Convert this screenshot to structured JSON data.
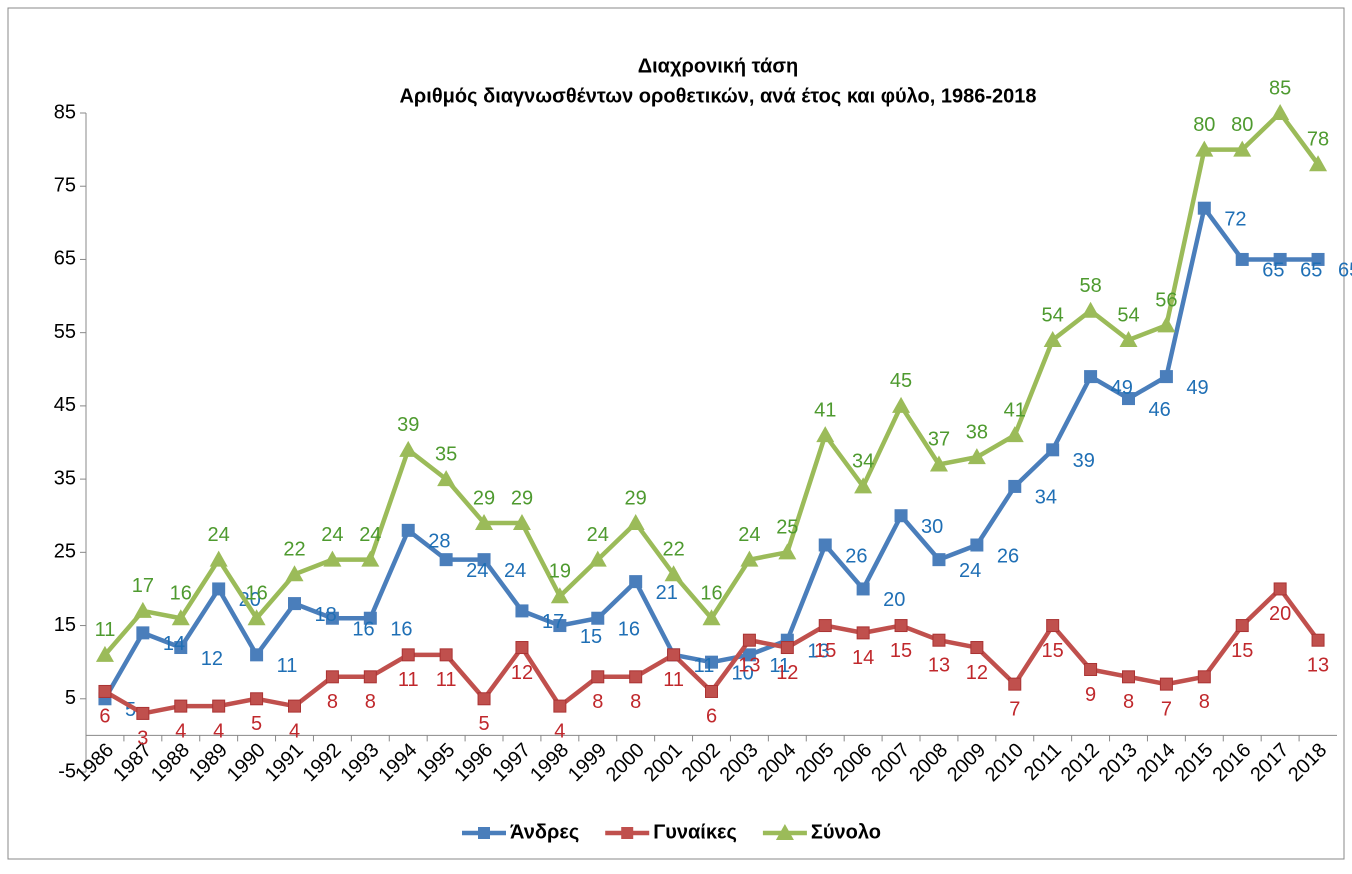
{
  "chart_data": {
    "type": "line",
    "title": "Διαχρονική τάση",
    "subtitle": "Αριθμός διαγνωσθέντων οροθετικών, ανά έτος και φύλο, 1986-2018",
    "categories": [
      "1986",
      "1987",
      "1988",
      "1989",
      "1990",
      "1991",
      "1992",
      "1993",
      "1994",
      "1995",
      "1996",
      "1997",
      "1998",
      "1999",
      "2000",
      "2001",
      "2002",
      "2003",
      "2004",
      "2005",
      "2006",
      "2007",
      "2008",
      "2009",
      "2010",
      "2011",
      "2012",
      "2013",
      "2014",
      "2015",
      "2016",
      "2017",
      "2018"
    ],
    "series": [
      {
        "name": "Άνδρες",
        "color": "#4a7ebb",
        "label_color": "#1f6fb5",
        "marker": "square",
        "values": [
          5,
          14,
          12,
          20,
          11,
          18,
          16,
          16,
          28,
          24,
          24,
          17,
          15,
          16,
          21,
          11,
          10,
          11,
          13,
          26,
          20,
          30,
          24,
          26,
          34,
          39,
          49,
          46,
          49,
          72,
          65,
          65,
          65
        ]
      },
      {
        "name": "Γυναίκες",
        "color": "#c0504d",
        "label_color": "#c0282c",
        "marker": "square",
        "values": [
          6,
          3,
          4,
          4,
          5,
          4,
          8,
          8,
          11,
          11,
          5,
          12,
          4,
          8,
          8,
          11,
          6,
          13,
          12,
          15,
          14,
          15,
          13,
          12,
          7,
          15,
          9,
          8,
          7,
          8,
          15,
          20,
          13
        ]
      },
      {
        "name": "Σύνολο",
        "color": "#9bbb59",
        "label_color": "#4e9a2f",
        "marker": "triangle",
        "values": [
          11,
          17,
          16,
          24,
          16,
          22,
          24,
          24,
          39,
          35,
          29,
          29,
          19,
          24,
          29,
          22,
          16,
          24,
          25,
          41,
          34,
          45,
          37,
          38,
          41,
          54,
          58,
          54,
          56,
          80,
          80,
          85,
          78
        ]
      }
    ],
    "ylim": [
      -5,
      85
    ],
    "yticks": [
      -5,
      5,
      15,
      25,
      35,
      45,
      55,
      65,
      75,
      85
    ],
    "legend": "bottom"
  }
}
